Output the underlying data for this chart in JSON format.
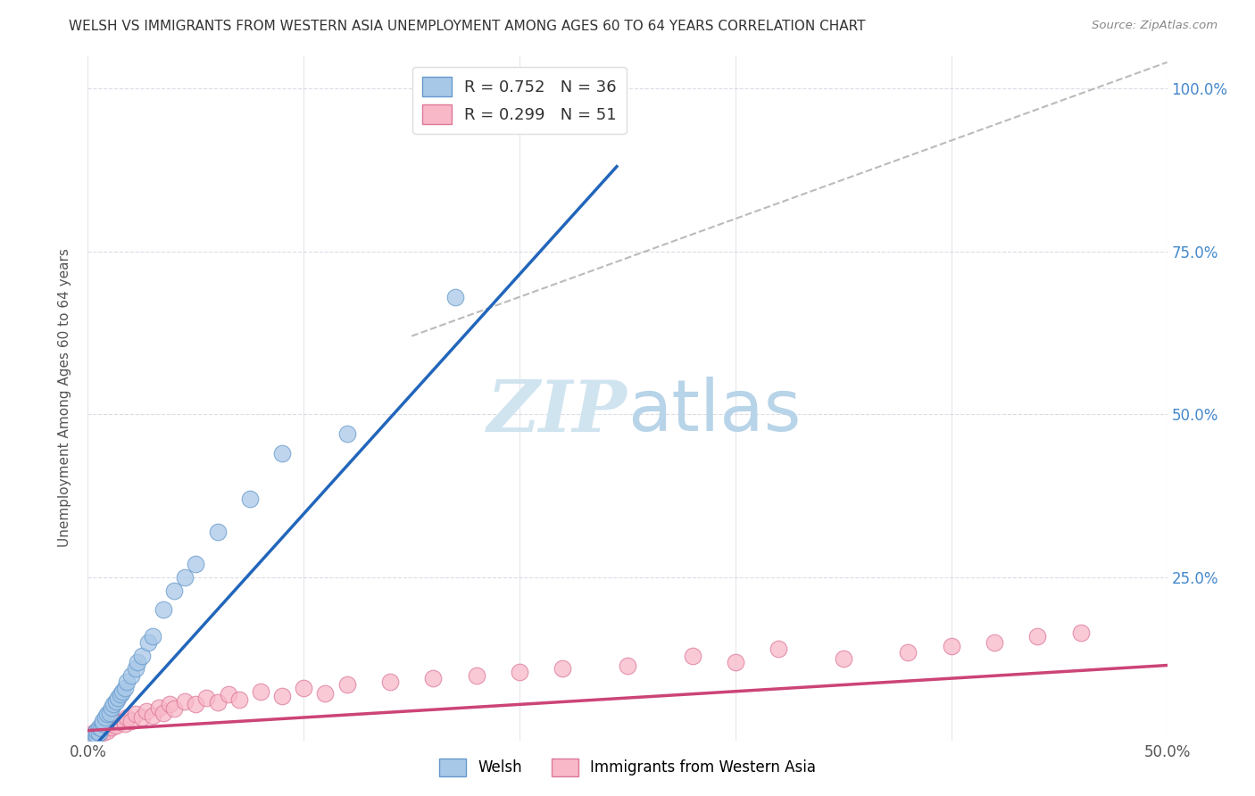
{
  "title": "WELSH VS IMMIGRANTS FROM WESTERN ASIA UNEMPLOYMENT AMONG AGES 60 TO 64 YEARS CORRELATION CHART",
  "source": "Source: ZipAtlas.com",
  "ylabel": "Unemployment Among Ages 60 to 64 years",
  "xlim": [
    0,
    0.5
  ],
  "ylim": [
    0,
    1.05
  ],
  "welsh_label": "Welsh",
  "immigrants_label": "Immigrants from Western Asia",
  "welsh_R": 0.752,
  "welsh_N": 36,
  "immigrants_R": 0.299,
  "immigrants_N": 51,
  "welsh_color": "#a8c8e8",
  "welsh_edge_color": "#6699cc",
  "welsh_line_color": "#2266bb",
  "immigrants_color": "#f8b8c8",
  "immigrants_edge_color": "#dd7799",
  "immigrants_line_color": "#cc4477",
  "watermark_color": "#d0e4f0",
  "welsh_x": [
    0.002,
    0.003,
    0.004,
    0.004,
    0.005,
    0.005,
    0.006,
    0.007,
    0.007,
    0.008,
    0.009,
    0.01,
    0.011,
    0.012,
    0.013,
    0.014,
    0.015,
    0.016,
    0.017,
    0.018,
    0.02,
    0.022,
    0.023,
    0.025,
    0.028,
    0.03,
    0.035,
    0.04,
    0.045,
    0.05,
    0.06,
    0.075,
    0.09,
    0.12,
    0.17,
    0.22
  ],
  "welsh_y": [
    0.005,
    0.01,
    0.008,
    0.015,
    0.012,
    0.02,
    0.018,
    0.025,
    0.03,
    0.035,
    0.04,
    0.042,
    0.05,
    0.055,
    0.06,
    0.065,
    0.07,
    0.075,
    0.08,
    0.09,
    0.1,
    0.11,
    0.12,
    0.13,
    0.15,
    0.16,
    0.2,
    0.23,
    0.25,
    0.27,
    0.32,
    0.37,
    0.44,
    0.47,
    0.68,
    0.96
  ],
  "immigrants_x": [
    0.001,
    0.002,
    0.003,
    0.004,
    0.005,
    0.006,
    0.007,
    0.008,
    0.009,
    0.01,
    0.011,
    0.012,
    0.013,
    0.015,
    0.017,
    0.018,
    0.02,
    0.022,
    0.025,
    0.027,
    0.03,
    0.033,
    0.035,
    0.038,
    0.04,
    0.045,
    0.05,
    0.055,
    0.06,
    0.065,
    0.07,
    0.08,
    0.09,
    0.1,
    0.11,
    0.12,
    0.14,
    0.16,
    0.18,
    0.2,
    0.22,
    0.25,
    0.28,
    0.3,
    0.32,
    0.35,
    0.38,
    0.4,
    0.42,
    0.44,
    0.46
  ],
  "immigrants_y": [
    0.005,
    0.01,
    0.008,
    0.015,
    0.01,
    0.02,
    0.012,
    0.018,
    0.015,
    0.025,
    0.02,
    0.03,
    0.022,
    0.028,
    0.025,
    0.035,
    0.03,
    0.04,
    0.035,
    0.045,
    0.038,
    0.05,
    0.042,
    0.055,
    0.048,
    0.06,
    0.055,
    0.065,
    0.058,
    0.07,
    0.062,
    0.075,
    0.068,
    0.08,
    0.072,
    0.085,
    0.09,
    0.095,
    0.1,
    0.105,
    0.11,
    0.115,
    0.13,
    0.12,
    0.14,
    0.125,
    0.135,
    0.145,
    0.15,
    0.16,
    0.165
  ],
  "welsh_line_x0": 0.0,
  "welsh_line_x1": 0.245,
  "welsh_line_y0": -0.02,
  "welsh_line_y1": 0.88,
  "immigrants_line_x0": 0.0,
  "immigrants_line_x1": 0.5,
  "immigrants_line_y0": 0.015,
  "immigrants_line_y1": 0.115,
  "diag_line_x0": 0.15,
  "diag_line_x1": 0.5,
  "diag_line_y0": 0.62,
  "diag_line_y1": 1.04
}
